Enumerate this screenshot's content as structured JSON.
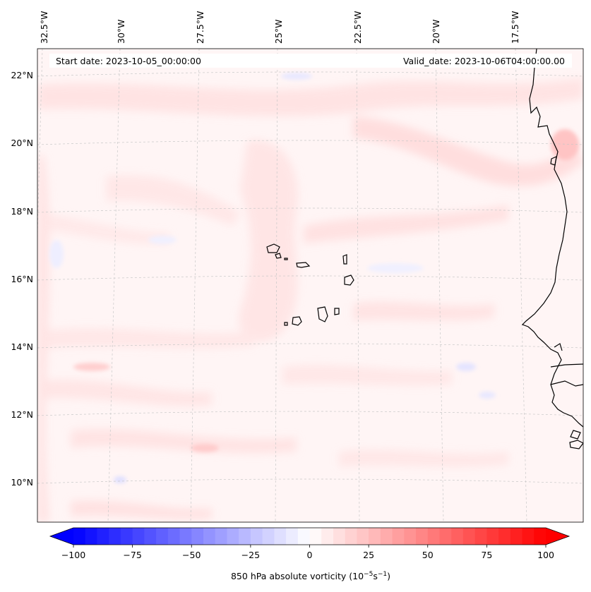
{
  "header": {
    "start_date": "Start date: 2023-10-05_00:00:00",
    "valid_date": "Valid_date: 2023-10-06T04:00:00.00"
  },
  "map": {
    "projection": "lambert-conformal",
    "field": "850 hPa absolute vorticity",
    "lon_labels": [
      "32.5°W",
      "30°W",
      "27.5°W",
      "25°W",
      "22.5°W",
      "20°W",
      "17.5°W"
    ],
    "lat_labels": [
      "22°N",
      "20°N",
      "18°N",
      "16°N",
      "14°N",
      "12°N",
      "10°N"
    ],
    "gridlines": "dashed",
    "coastline_color": "#000000"
  },
  "colorbar": {
    "label_prefix": "850 hPa absolute vorticity (10",
    "label_exp1": "−5",
    "label_mid": "s",
    "label_exp2": "−1",
    "label_suffix": ")",
    "ticks": [
      "−100",
      "−75",
      "−50",
      "−25",
      "0",
      "25",
      "50",
      "75",
      "100"
    ],
    "range": [
      -100,
      100
    ],
    "colormap": "bwr",
    "extend": "both",
    "low_color": "#0000ff",
    "mid_color": "#ffffff",
    "high_color": "#ff0000"
  }
}
